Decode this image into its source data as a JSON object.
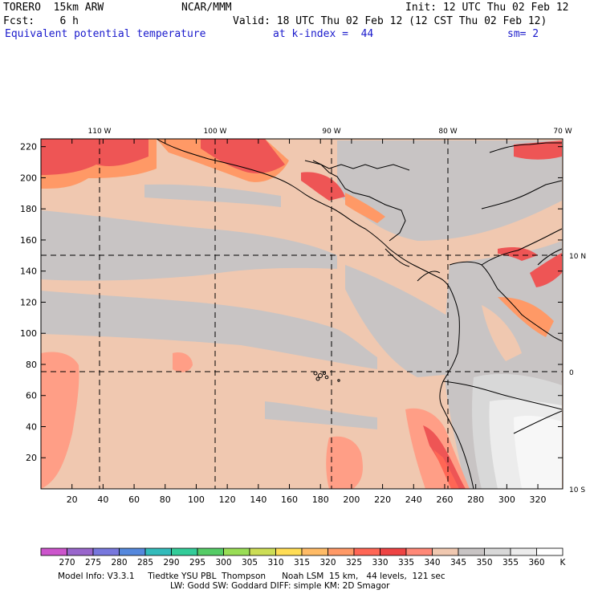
{
  "header": {
    "model": "TORERO  15km ARW",
    "center": "NCAR/MMM",
    "init": "Init: 12 UTC Thu 02 Feb 12",
    "fcst": "Fcst:    6 h",
    "valid": "Valid: 18 UTC Thu 02 Feb 12 (12 CST Thu 02 Feb 12)",
    "field": "Equivalent potential temperature",
    "level": "at k-index =  44",
    "smooth": "sm= 2"
  },
  "map": {
    "lon_labels": [
      "110 W",
      "100 W",
      "90 W",
      "80 W",
      "70 W"
    ],
    "lat_labels": [
      "10 N",
      "0",
      "10 S"
    ],
    "y_ticks": [
      "20",
      "40",
      "60",
      "80",
      "100",
      "120",
      "140",
      "160",
      "180",
      "200",
      "220"
    ],
    "x_ticks": [
      "20",
      "40",
      "60",
      "80",
      "100",
      "120",
      "140",
      "160",
      "180",
      "200",
      "220",
      "240",
      "260",
      "280",
      "300",
      "320"
    ]
  },
  "colorbar": {
    "labels": [
      "270",
      "275",
      "280",
      "285",
      "290",
      "295",
      "300",
      "305",
      "310",
      "315",
      "320",
      "325",
      "330",
      "335",
      "340",
      "345",
      "350",
      "355",
      "360"
    ],
    "unit": "K",
    "colors": [
      "#cc55cc",
      "#9966cc",
      "#7777dd",
      "#5588dd",
      "#33bbbb",
      "#33cc99",
      "#55cc66",
      "#99dd55",
      "#ccdd55",
      "#ffdd55",
      "#ffbb66",
      "#ff9966",
      "#ff6655",
      "#ee4444",
      "#ff8877",
      "#f0c8b0",
      "#c8c4c4",
      "#d8d8d8",
      "#ececec",
      "#ffffff"
    ]
  },
  "footer": {
    "line1": "Model Info: V3.3.1     Tiedtke YSU PBL  Thompson      Noah LSM  15 km,   44 levels,  121 sec",
    "line2": "LW: Godd SW: Goddard DIFF: simple KM: 2D Smagor"
  }
}
